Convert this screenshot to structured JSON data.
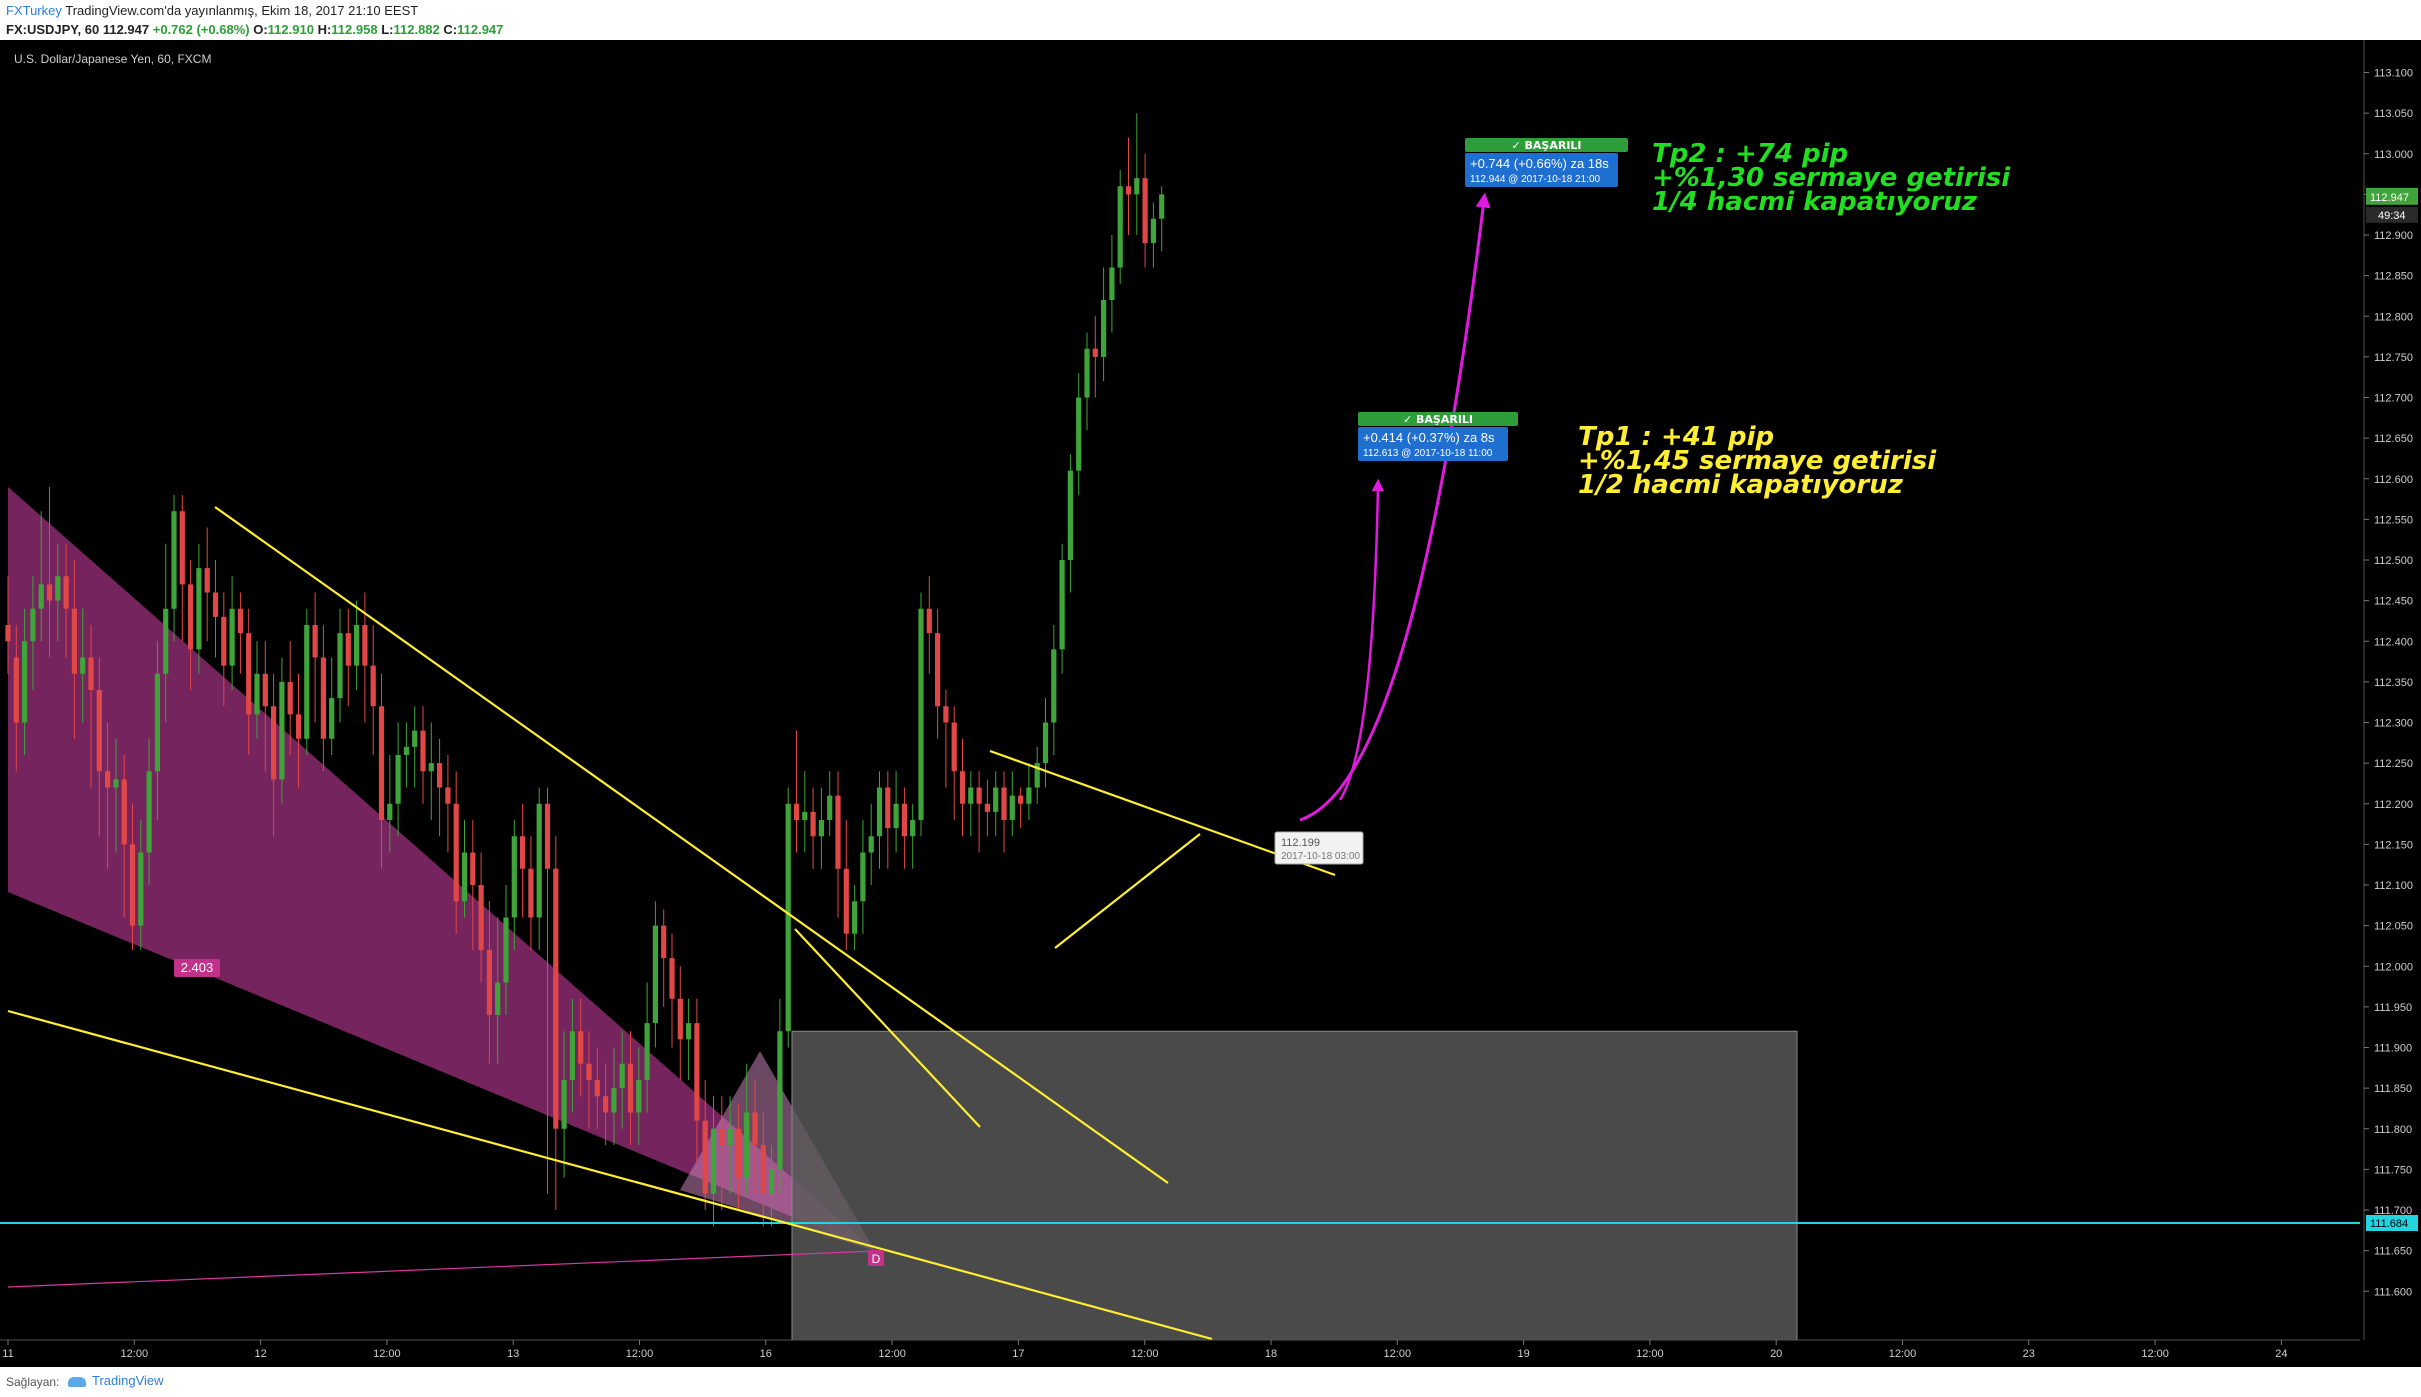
{
  "header": {
    "publisher": "FXTurkey",
    "published_text": "TradingView.com'da yayınlanmış, Ekim 18, 2017 21:10 EEST",
    "symbol_line": "FX:USDJPY, 60",
    "last": "112.947",
    "change": "+0.762 (+0.68%)",
    "open": "112.910",
    "high": "112.958",
    "low": "112.882",
    "close": "112.947"
  },
  "chart_title": "U.S. Dollar/Japanese Yen, 60, FXCM",
  "footer": {
    "provider_label": "Sağlayan:",
    "provider_name": "TradingView"
  },
  "annotations": {
    "tp2": [
      "Tp2 : +74 pip",
      "+%1,30 sermaye getirisi",
      "1/4 hacmi kapatıyoruz"
    ],
    "tp1": [
      "Tp1 : +41 pip",
      "+%1,45 sermaye getirisi",
      "1/2 hacmi kapatıyoruz"
    ],
    "tp2_badge": "BAŞARILI",
    "tp2_change": "+0.744 (+0.66%) za 18s",
    "tp2_detail": "112.944  @ 2017-10-18  21:00",
    "tp1_badge": "BAŞARILI",
    "tp1_change": "+0.414 (+0.37%) za 8s",
    "tp1_detail": "112.613  @ 2017-10-18  11:00",
    "entry_price": "112.199",
    "entry_date": "2017-10-18 03:00",
    "fib_label": "2.403",
    "point_label": "D",
    "support_label": "111.684",
    "last_price_label": "112.947",
    "countdown_label": "49:34"
  },
  "colors": {
    "background": "#000000",
    "up_candle": "#3fa43a",
    "down_candle": "#e04848",
    "trendline": "#ffee33",
    "channel_fill": "#8b2a6e",
    "target_curve": "#e21ae0",
    "support_line": "#22d3e0",
    "tp2_text": "#22dd22",
    "tp1_text": "#ffee33",
    "box_fill": "#5a5a5a"
  },
  "chart_data": {
    "type": "candlestick",
    "title": "U.S. Dollar/Japanese Yen, 60, FXCM",
    "ylim": [
      111.54,
      113.14
    ],
    "y_ticks": [
      111.6,
      111.65,
      111.7,
      111.75,
      111.8,
      111.85,
      111.9,
      111.95,
      112.0,
      112.05,
      112.1,
      112.15,
      112.2,
      112.25,
      112.3,
      112.35,
      112.4,
      112.45,
      112.5,
      112.55,
      112.6,
      112.65,
      112.7,
      112.75,
      112.8,
      112.85,
      112.9,
      112.95,
      113.0,
      113.05,
      113.1
    ],
    "x_ticks": [
      "11",
      "12:00",
      "12",
      "12:00",
      "13",
      "12:00",
      "16",
      "12:00",
      "17",
      "12:00",
      "18",
      "12:00",
      "19",
      "12:00",
      "20",
      "12:00",
      "23",
      "12:00",
      "24"
    ],
    "support_level": 111.684,
    "entry": {
      "price": 112.199,
      "date": "2017-10-18 03:00"
    },
    "tp1": {
      "price": 112.613,
      "date": "2017-10-18 11:00",
      "change": "+0.414 (+0.37%)"
    },
    "tp2": {
      "price": 112.944,
      "date": "2017-10-18 21:00",
      "change": "+0.744 (+0.66%)"
    },
    "candles": [
      [
        112.42,
        112.4,
        112.48,
        112.36
      ],
      [
        112.38,
        112.3,
        112.42,
        112.24
      ],
      [
        112.3,
        112.4,
        112.44,
        112.26
      ],
      [
        112.4,
        112.44,
        112.48,
        112.34
      ],
      [
        112.44,
        112.47,
        112.56,
        112.4
      ],
      [
        112.47,
        112.45,
        112.59,
        112.38
      ],
      [
        112.45,
        112.48,
        112.52,
        112.4
      ],
      [
        112.48,
        112.44,
        112.52,
        112.38
      ],
      [
        112.44,
        112.36,
        112.5,
        112.28
      ],
      [
        112.36,
        112.38,
        112.44,
        112.3
      ],
      [
        112.38,
        112.34,
        112.42,
        112.22
      ],
      [
        112.34,
        112.24,
        112.38,
        112.16
      ],
      [
        112.24,
        112.22,
        112.3,
        112.12
      ],
      [
        112.22,
        112.23,
        112.28,
        112.14
      ],
      [
        112.23,
        112.15,
        112.26,
        112.06
      ],
      [
        112.15,
        112.05,
        112.2,
        112.02
      ],
      [
        112.05,
        112.14,
        112.18,
        112.02
      ],
      [
        112.14,
        112.24,
        112.28,
        112.1
      ],
      [
        112.24,
        112.36,
        112.4,
        112.18
      ],
      [
        112.36,
        112.44,
        112.52,
        112.3
      ],
      [
        112.44,
        112.56,
        112.58,
        112.4
      ],
      [
        112.56,
        112.47,
        112.58,
        112.4
      ],
      [
        112.47,
        112.39,
        112.5,
        112.34
      ],
      [
        112.39,
        112.49,
        112.52,
        112.36
      ],
      [
        112.49,
        112.46,
        112.54,
        112.4
      ],
      [
        112.46,
        112.43,
        112.5,
        112.38
      ],
      [
        112.43,
        112.37,
        112.46,
        112.32
      ],
      [
        112.37,
        112.44,
        112.48,
        112.34
      ],
      [
        112.44,
        112.41,
        112.46,
        112.36
      ],
      [
        112.41,
        112.31,
        112.44,
        112.26
      ],
      [
        112.31,
        112.36,
        112.4,
        112.28
      ],
      [
        112.36,
        112.32,
        112.4,
        112.24
      ],
      [
        112.32,
        112.23,
        112.36,
        112.16
      ],
      [
        112.23,
        112.35,
        112.38,
        112.2
      ],
      [
        112.35,
        112.31,
        112.4,
        112.26
      ],
      [
        112.31,
        112.28,
        112.36,
        112.22
      ],
      [
        112.28,
        112.42,
        112.44,
        112.26
      ],
      [
        112.42,
        112.38,
        112.46,
        112.3
      ],
      [
        112.38,
        112.28,
        112.42,
        112.24
      ],
      [
        112.28,
        112.33,
        112.38,
        112.26
      ],
      [
        112.33,
        112.41,
        112.44,
        112.3
      ],
      [
        112.41,
        112.37,
        112.44,
        112.32
      ],
      [
        112.37,
        112.42,
        112.45,
        112.34
      ],
      [
        112.42,
        112.37,
        112.46,
        112.3
      ],
      [
        112.37,
        112.32,
        112.42,
        112.26
      ],
      [
        112.32,
        112.18,
        112.36,
        112.12
      ],
      [
        112.18,
        112.2,
        112.26,
        112.14
      ],
      [
        112.2,
        112.26,
        112.3,
        112.16
      ],
      [
        112.26,
        112.27,
        112.3,
        112.22
      ],
      [
        112.27,
        112.29,
        112.32,
        112.22
      ],
      [
        112.29,
        112.24,
        112.32,
        112.2
      ],
      [
        112.24,
        112.25,
        112.3,
        112.18
      ],
      [
        112.25,
        112.22,
        112.28,
        112.16
      ],
      [
        112.22,
        112.2,
        112.26,
        112.14
      ],
      [
        112.2,
        112.08,
        112.24,
        112.04
      ],
      [
        112.08,
        112.14,
        112.18,
        112.06
      ],
      [
        112.14,
        112.1,
        112.18,
        112.02
      ],
      [
        112.1,
        112.02,
        112.14,
        111.98
      ],
      [
        112.02,
        111.94,
        112.08,
        111.88
      ],
      [
        111.94,
        111.98,
        112.06,
        111.88
      ],
      [
        111.98,
        112.06,
        112.1,
        111.94
      ],
      [
        112.06,
        112.16,
        112.18,
        112.02
      ],
      [
        112.16,
        112.12,
        112.2,
        112.06
      ],
      [
        112.12,
        112.06,
        112.16,
        112.02
      ],
      [
        112.06,
        112.2,
        112.22,
        112.02
      ],
      [
        112.2,
        112.12,
        112.22,
        111.72
      ],
      [
        112.12,
        111.8,
        112.16,
        111.7
      ],
      [
        111.8,
        111.86,
        111.92,
        111.74
      ],
      [
        111.86,
        111.92,
        111.96,
        111.82
      ],
      [
        111.92,
        111.88,
        111.96,
        111.84
      ],
      [
        111.88,
        111.86,
        111.92,
        111.8
      ],
      [
        111.86,
        111.84,
        111.9,
        111.8
      ],
      [
        111.84,
        111.82,
        111.88,
        111.78
      ],
      [
        111.82,
        111.85,
        111.9,
        111.78
      ],
      [
        111.85,
        111.88,
        111.92,
        111.8
      ],
      [
        111.88,
        111.82,
        111.92,
        111.78
      ],
      [
        111.82,
        111.86,
        111.9,
        111.78
      ],
      [
        111.86,
        111.93,
        111.98,
        111.82
      ],
      [
        111.93,
        112.05,
        112.08,
        111.9
      ],
      [
        112.05,
        112.01,
        112.07,
        111.95
      ],
      [
        112.01,
        111.96,
        112.04,
        111.9
      ],
      [
        111.96,
        111.91,
        112.0,
        111.86
      ],
      [
        111.91,
        111.93,
        111.96,
        111.86
      ],
      [
        111.93,
        111.81,
        111.96,
        111.76
      ],
      [
        111.81,
        111.72,
        111.86,
        111.7
      ],
      [
        111.72,
        111.8,
        111.84,
        111.68
      ],
      [
        111.8,
        111.78,
        111.84,
        111.7
      ],
      [
        111.78,
        111.8,
        111.84,
        111.72
      ],
      [
        111.8,
        111.74,
        111.83,
        111.7
      ],
      [
        111.74,
        111.82,
        111.88,
        111.72
      ],
      [
        111.82,
        111.78,
        111.86,
        111.72
      ],
      [
        111.78,
        111.72,
        111.82,
        111.68
      ],
      [
        111.72,
        111.75,
        111.78,
        111.68
      ],
      [
        111.75,
        111.92,
        111.96,
        111.72
      ],
      [
        111.92,
        112.2,
        112.22,
        111.9
      ],
      [
        112.2,
        112.18,
        112.29,
        112.14
      ],
      [
        112.18,
        112.19,
        112.24,
        112.14
      ],
      [
        112.19,
        112.16,
        112.22,
        112.12
      ],
      [
        112.16,
        112.18,
        112.22,
        112.12
      ],
      [
        112.18,
        112.21,
        112.24,
        112.16
      ],
      [
        112.21,
        112.12,
        112.24,
        112.06
      ],
      [
        112.12,
        112.04,
        112.18,
        112.02
      ],
      [
        112.04,
        112.08,
        112.1,
        112.02
      ],
      [
        112.08,
        112.14,
        112.18,
        112.04
      ],
      [
        112.14,
        112.16,
        112.2,
        112.1
      ],
      [
        112.16,
        112.22,
        112.24,
        112.12
      ],
      [
        112.22,
        112.17,
        112.24,
        112.12
      ],
      [
        112.17,
        112.2,
        112.24,
        112.14
      ],
      [
        112.2,
        112.16,
        112.22,
        112.12
      ],
      [
        112.16,
        112.18,
        112.2,
        112.12
      ],
      [
        112.18,
        112.44,
        112.46,
        112.16
      ],
      [
        112.44,
        112.41,
        112.48,
        112.36
      ],
      [
        112.41,
        112.32,
        112.44,
        112.28
      ],
      [
        112.32,
        112.3,
        112.34,
        112.22
      ],
      [
        112.3,
        112.24,
        112.32,
        112.18
      ],
      [
        112.24,
        112.2,
        112.28,
        112.16
      ],
      [
        112.2,
        112.22,
        112.24,
        112.16
      ],
      [
        112.22,
        112.2,
        112.24,
        112.14
      ],
      [
        112.2,
        112.19,
        112.23,
        112.16
      ],
      [
        112.19,
        112.22,
        112.24,
        112.16
      ],
      [
        112.22,
        112.18,
        112.24,
        112.14
      ],
      [
        112.18,
        112.21,
        112.24,
        112.16
      ],
      [
        112.21,
        112.2,
        112.22,
        112.17
      ],
      [
        112.2,
        112.22,
        112.25,
        112.18
      ],
      [
        112.22,
        112.25,
        112.27,
        112.2
      ],
      [
        112.25,
        112.3,
        112.33,
        112.22
      ],
      [
        112.3,
        112.39,
        112.42,
        112.26
      ],
      [
        112.39,
        112.5,
        112.52,
        112.36
      ],
      [
        112.5,
        112.61,
        112.63,
        112.46
      ],
      [
        112.61,
        112.7,
        112.73,
        112.58
      ],
      [
        112.7,
        112.76,
        112.78,
        112.66
      ],
      [
        112.76,
        112.75,
        112.8,
        112.7
      ],
      [
        112.75,
        112.82,
        112.86,
        112.72
      ],
      [
        112.82,
        112.86,
        112.9,
        112.78
      ],
      [
        112.86,
        112.96,
        112.98,
        112.84
      ],
      [
        112.96,
        112.95,
        113.02,
        112.9
      ],
      [
        112.95,
        112.97,
        113.05,
        112.9
      ],
      [
        112.97,
        112.89,
        113.0,
        112.86
      ],
      [
        112.89,
        112.92,
        112.94,
        112.86
      ],
      [
        112.92,
        112.95,
        112.96,
        112.88
      ]
    ]
  }
}
